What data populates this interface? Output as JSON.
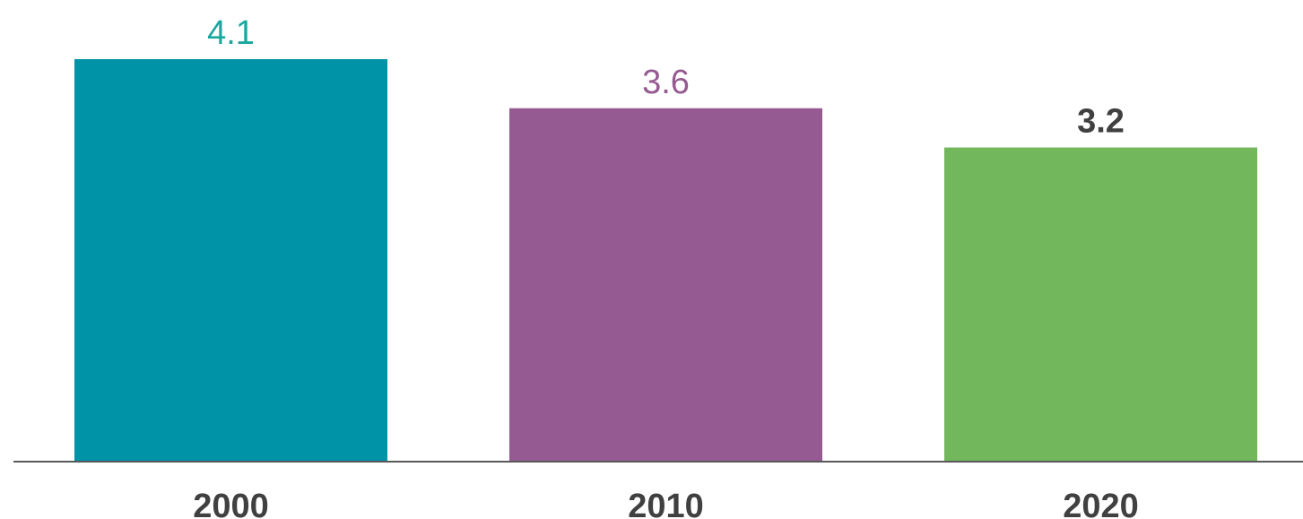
{
  "chart_data": {
    "type": "bar",
    "categories": [
      "2000",
      "2010",
      "2020"
    ],
    "values": [
      4.1,
      3.6,
      3.2
    ],
    "data_labels": [
      "4.1",
      "3.6",
      "3.2"
    ],
    "bar_colors": [
      "#0093A7",
      "#955A91",
      "#72B75B"
    ],
    "label_colors": [
      "#1AA7A0",
      "#955A91",
      "#404040"
    ],
    "label_bold": [
      false,
      false,
      true
    ],
    "axis_color": "#595959",
    "title": "",
    "xlabel": "",
    "ylabel": "",
    "ylim": [
      0,
      4.1
    ],
    "grid": false,
    "legend": "none"
  }
}
